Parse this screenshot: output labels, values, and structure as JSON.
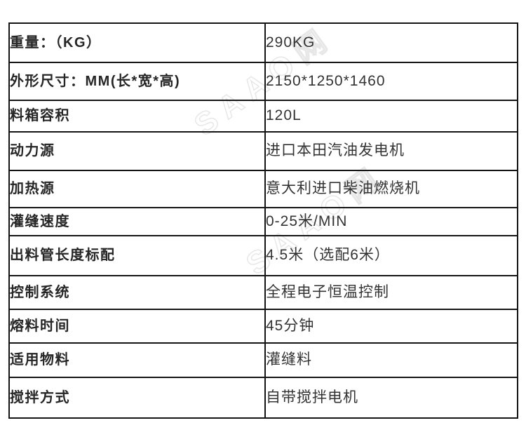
{
  "watermark": {
    "text": "SAAO网"
  },
  "colors": {
    "table_border": "#141414",
    "label_text": "#262626",
    "value_text": "#333333",
    "watermark": "#bdbdbd",
    "background": "#ffffff"
  },
  "table": {
    "rows": [
      {
        "label": "重量：（KG）",
        "value": "290KG"
      },
      {
        "label": "外形尺寸：MM(长*宽*高)",
        "value": "2150*1250*1460"
      },
      {
        "label": "料箱容积",
        "value": "120L"
      },
      {
        "label": "动力源",
        "value": "进口本田汽油发电机"
      },
      {
        "label": "加热源",
        "value": "意大利进口柴油燃烧机"
      },
      {
        "label": "灌缝速度",
        "value": "0-25米/MIN"
      },
      {
        "label": "出料管长度标配",
        "value": "4.5米（选配6米）"
      },
      {
        "label": "控制系统",
        "value": "全程电子恒温控制"
      },
      {
        "label": "熔料时间",
        "value": "45分钟"
      },
      {
        "label": "适用物料",
        "value": "灌缝料"
      },
      {
        "label": "搅拌方式",
        "value": "自带搅拌电机"
      }
    ]
  }
}
